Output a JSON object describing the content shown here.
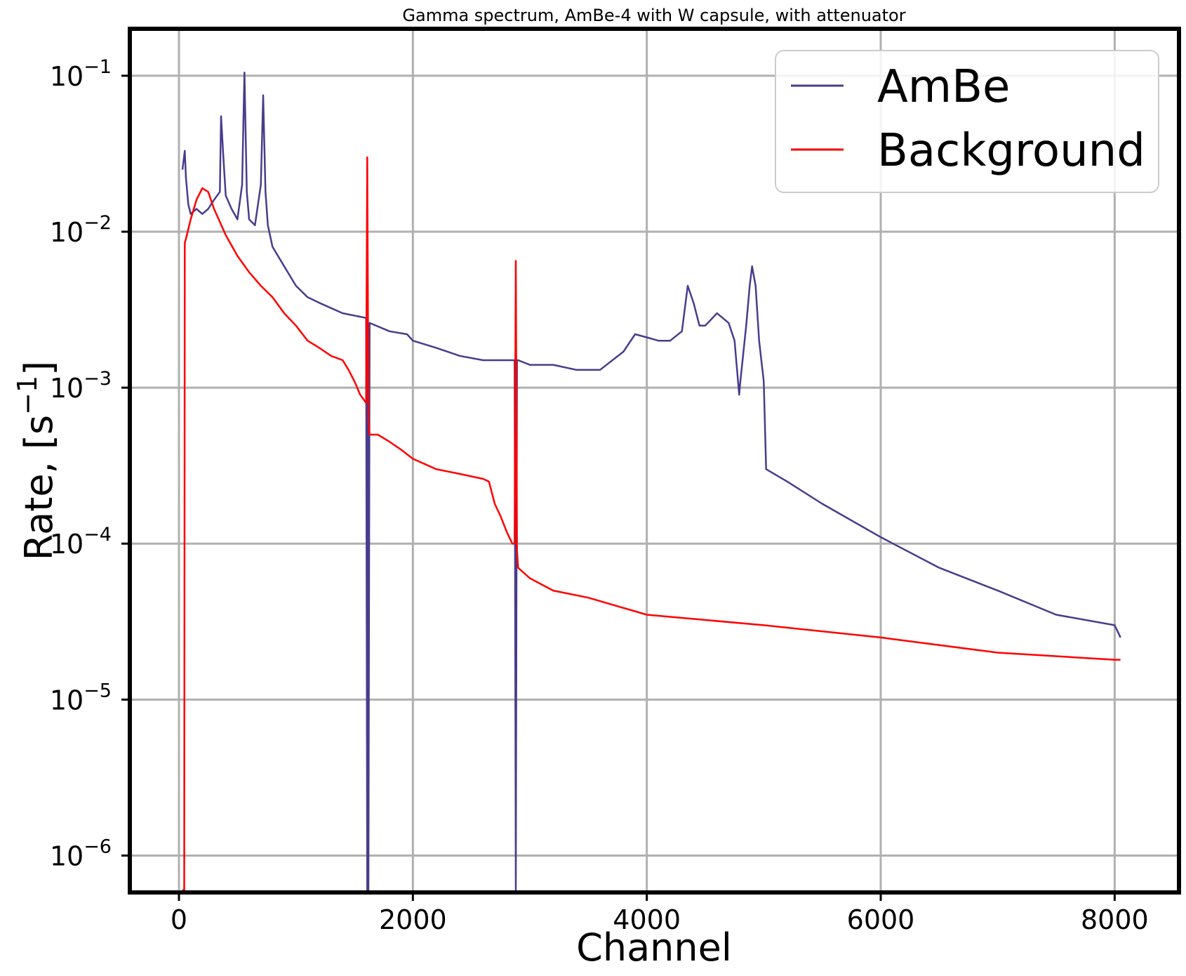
{
  "chart_data": {
    "type": "line",
    "title": "Gamma spectrum, AmBe-4 with W capsule, with attenuator",
    "xlabel": "Channel",
    "ylabel_base": "Rate, [s",
    "ylabel_exp": "−1",
    "ylabel_end": "]",
    "yscale": "log",
    "xlim": [
      -420,
      8550
    ],
    "ylim": [
      5.8e-07,
      0.2
    ],
    "xticks": [
      {
        "value": 0,
        "label": "0"
      },
      {
        "value": 2000,
        "label": "2000"
      },
      {
        "value": 4000,
        "label": "4000"
      },
      {
        "value": 6000,
        "label": "6000"
      },
      {
        "value": 8000,
        "label": "8000"
      }
    ],
    "yticks": [
      {
        "value": 0.1,
        "base": "10",
        "exp": "−1"
      },
      {
        "value": 0.01,
        "base": "10",
        "exp": "−2"
      },
      {
        "value": 0.001,
        "base": "10",
        "exp": "−3"
      },
      {
        "value": 0.0001,
        "base": "10",
        "exp": "−4"
      },
      {
        "value": 1e-05,
        "base": "10",
        "exp": "−5"
      },
      {
        "value": 1e-06,
        "base": "10",
        "exp": "−6"
      }
    ],
    "grid": true,
    "legend_position": "top-right",
    "series": [
      {
        "name": "AmBe",
        "color": "#483d8b",
        "x": [
          30,
          50,
          60,
          80,
          100,
          150,
          200,
          250,
          300,
          350,
          360,
          380,
          400,
          450,
          500,
          540,
          560,
          580,
          600,
          650,
          700,
          720,
          740,
          760,
          800,
          900,
          1000,
          1100,
          1200,
          1400,
          1600,
          1610,
          1615,
          1620,
          1630,
          1800,
          1950,
          2000,
          2200,
          2400,
          2600,
          2800,
          2870,
          2880,
          2890,
          2900,
          3000,
          3200,
          3400,
          3600,
          3800,
          3900,
          4000,
          4100,
          4200,
          4300,
          4350,
          4400,
          4450,
          4500,
          4600,
          4700,
          4750,
          4790,
          4800,
          4850,
          4880,
          4900,
          4930,
          4960,
          5000,
          5020,
          5200,
          5500,
          6000,
          6500,
          7000,
          7500,
          8000,
          8050
        ],
        "y": [
          0.025,
          0.033,
          0.022,
          0.015,
          0.013,
          0.014,
          0.013,
          0.014,
          0.016,
          0.018,
          0.055,
          0.03,
          0.017,
          0.014,
          0.012,
          0.02,
          0.105,
          0.018,
          0.012,
          0.011,
          0.02,
          0.075,
          0.018,
          0.011,
          0.008,
          0.006,
          0.0045,
          0.0038,
          0.0035,
          0.003,
          0.0028,
          6e-07,
          0.0026,
          6e-07,
          0.0026,
          0.0023,
          0.0022,
          0.002,
          0.0018,
          0.0016,
          0.0015,
          0.0015,
          0.0015,
          6e-07,
          0.0015,
          0.0015,
          0.0014,
          0.0014,
          0.0013,
          0.0013,
          0.0017,
          0.0022,
          0.0021,
          0.002,
          0.002,
          0.0023,
          0.0045,
          0.0035,
          0.0025,
          0.0025,
          0.003,
          0.0026,
          0.002,
          0.0009,
          0.0011,
          0.0025,
          0.0045,
          0.006,
          0.0045,
          0.002,
          0.0011,
          0.0003,
          0.00025,
          0.00018,
          0.00011,
          7e-05,
          5e-05,
          3.5e-05,
          3e-05,
          2.5e-05
        ]
      },
      {
        "name": "Background",
        "color": "#ff0000",
        "x": [
          30,
          40,
          45,
          50,
          60,
          100,
          150,
          200,
          250,
          300,
          400,
          500,
          600,
          700,
          800,
          900,
          1000,
          1100,
          1200,
          1300,
          1400,
          1450,
          1500,
          1550,
          1600,
          1610,
          1620,
          1630,
          1700,
          1800,
          1900,
          2000,
          2200,
          2400,
          2600,
          2650,
          2700,
          2750,
          2800,
          2850,
          2870,
          2880,
          2890,
          2900,
          3000,
          3200,
          3500,
          4000,
          5000,
          6000,
          7000,
          8000,
          8050
        ],
        "y": [
          6e-07,
          6e-07,
          6e-07,
          0.0085,
          0.009,
          0.012,
          0.016,
          0.019,
          0.018,
          0.014,
          0.0095,
          0.007,
          0.0055,
          0.0045,
          0.0038,
          0.003,
          0.0025,
          0.002,
          0.0018,
          0.0016,
          0.0015,
          0.0013,
          0.0011,
          0.0009,
          0.0008,
          0.03,
          0.0006,
          0.0005,
          0.0005,
          0.00045,
          0.0004,
          0.00035,
          0.0003,
          0.00028,
          0.00026,
          0.00025,
          0.00018,
          0.00015,
          0.00012,
          0.0001,
          0.0001,
          0.0065,
          9e-05,
          7e-05,
          6e-05,
          5e-05,
          4.5e-05,
          3.5e-05,
          3e-05,
          2.5e-05,
          2e-05,
          1.8e-05,
          1.8e-05
        ]
      }
    ]
  }
}
